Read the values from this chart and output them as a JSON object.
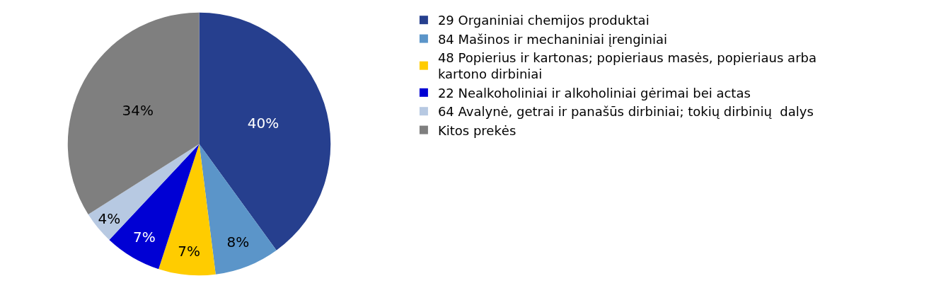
{
  "chart_data": {
    "type": "pie",
    "categories": [
      "29 Organiniai chemijos produktai",
      "84 Mašinos ir mechaniniai įrenginiai",
      "48 Popierius ir kartonas; popieriaus masės, popieriaus arba kartono dirbiniai",
      "22 Nealkoholiniai ir alkoholiniai gėrimai bei actas",
      "64 Avalynė, getrai ir panašūs dirbiniai; tokių dirbinių  dalys",
      "Kitos prekės"
    ],
    "values": [
      40,
      8,
      7,
      7,
      4,
      34
    ],
    "value_labels": [
      "40%",
      "8%",
      "7%",
      "7%",
      "4%",
      "34%"
    ],
    "colors": [
      "#263f8e",
      "#5b95c9",
      "#ffcc00",
      "#0000d4",
      "#b7c9e2",
      "#7f7f7f"
    ],
    "legend": "right"
  }
}
